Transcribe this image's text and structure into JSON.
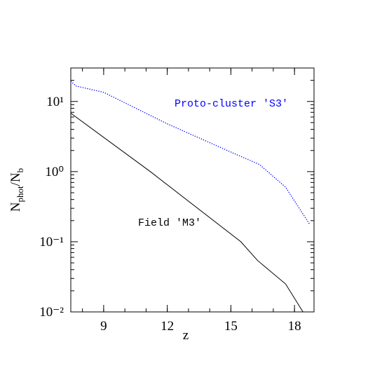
{
  "chart_data": {
    "type": "line",
    "xlabel": "z",
    "ylabel": [
      "N",
      "phot",
      "/N",
      "b"
    ],
    "xlim": [
      7.45,
      18.92
    ],
    "xticks": [
      9,
      12,
      15,
      18
    ],
    "ylim": [
      0.01,
      30
    ],
    "ylog": true,
    "yticks": [
      {
        "value": 0.01,
        "label": "10⁻²"
      },
      {
        "value": 0.1,
        "label": "10⁻¹"
      },
      {
        "value": 1,
        "label": "10⁰"
      },
      {
        "value": 10,
        "label": "10¹"
      }
    ],
    "series": [
      {
        "name": "Proto-cluster 'S3'",
        "color": "#0000ff",
        "dash": "dotted",
        "x": [
          7.45,
          7.7,
          9,
          12,
          15,
          16.35,
          17.58,
          18.7
        ],
        "values": [
          19.5,
          16.6,
          13.5,
          4.8,
          1.9,
          1.26,
          0.6,
          0.18
        ]
      },
      {
        "name": "Field 'M3'",
        "color": "#000000",
        "dash": "solid",
        "x": [
          7.45,
          11.2,
          15.47,
          16.26,
          17.58,
          18.4
        ],
        "values": [
          6.8,
          1.0,
          0.1,
          0.054,
          0.025,
          0.01
        ]
      }
    ]
  }
}
